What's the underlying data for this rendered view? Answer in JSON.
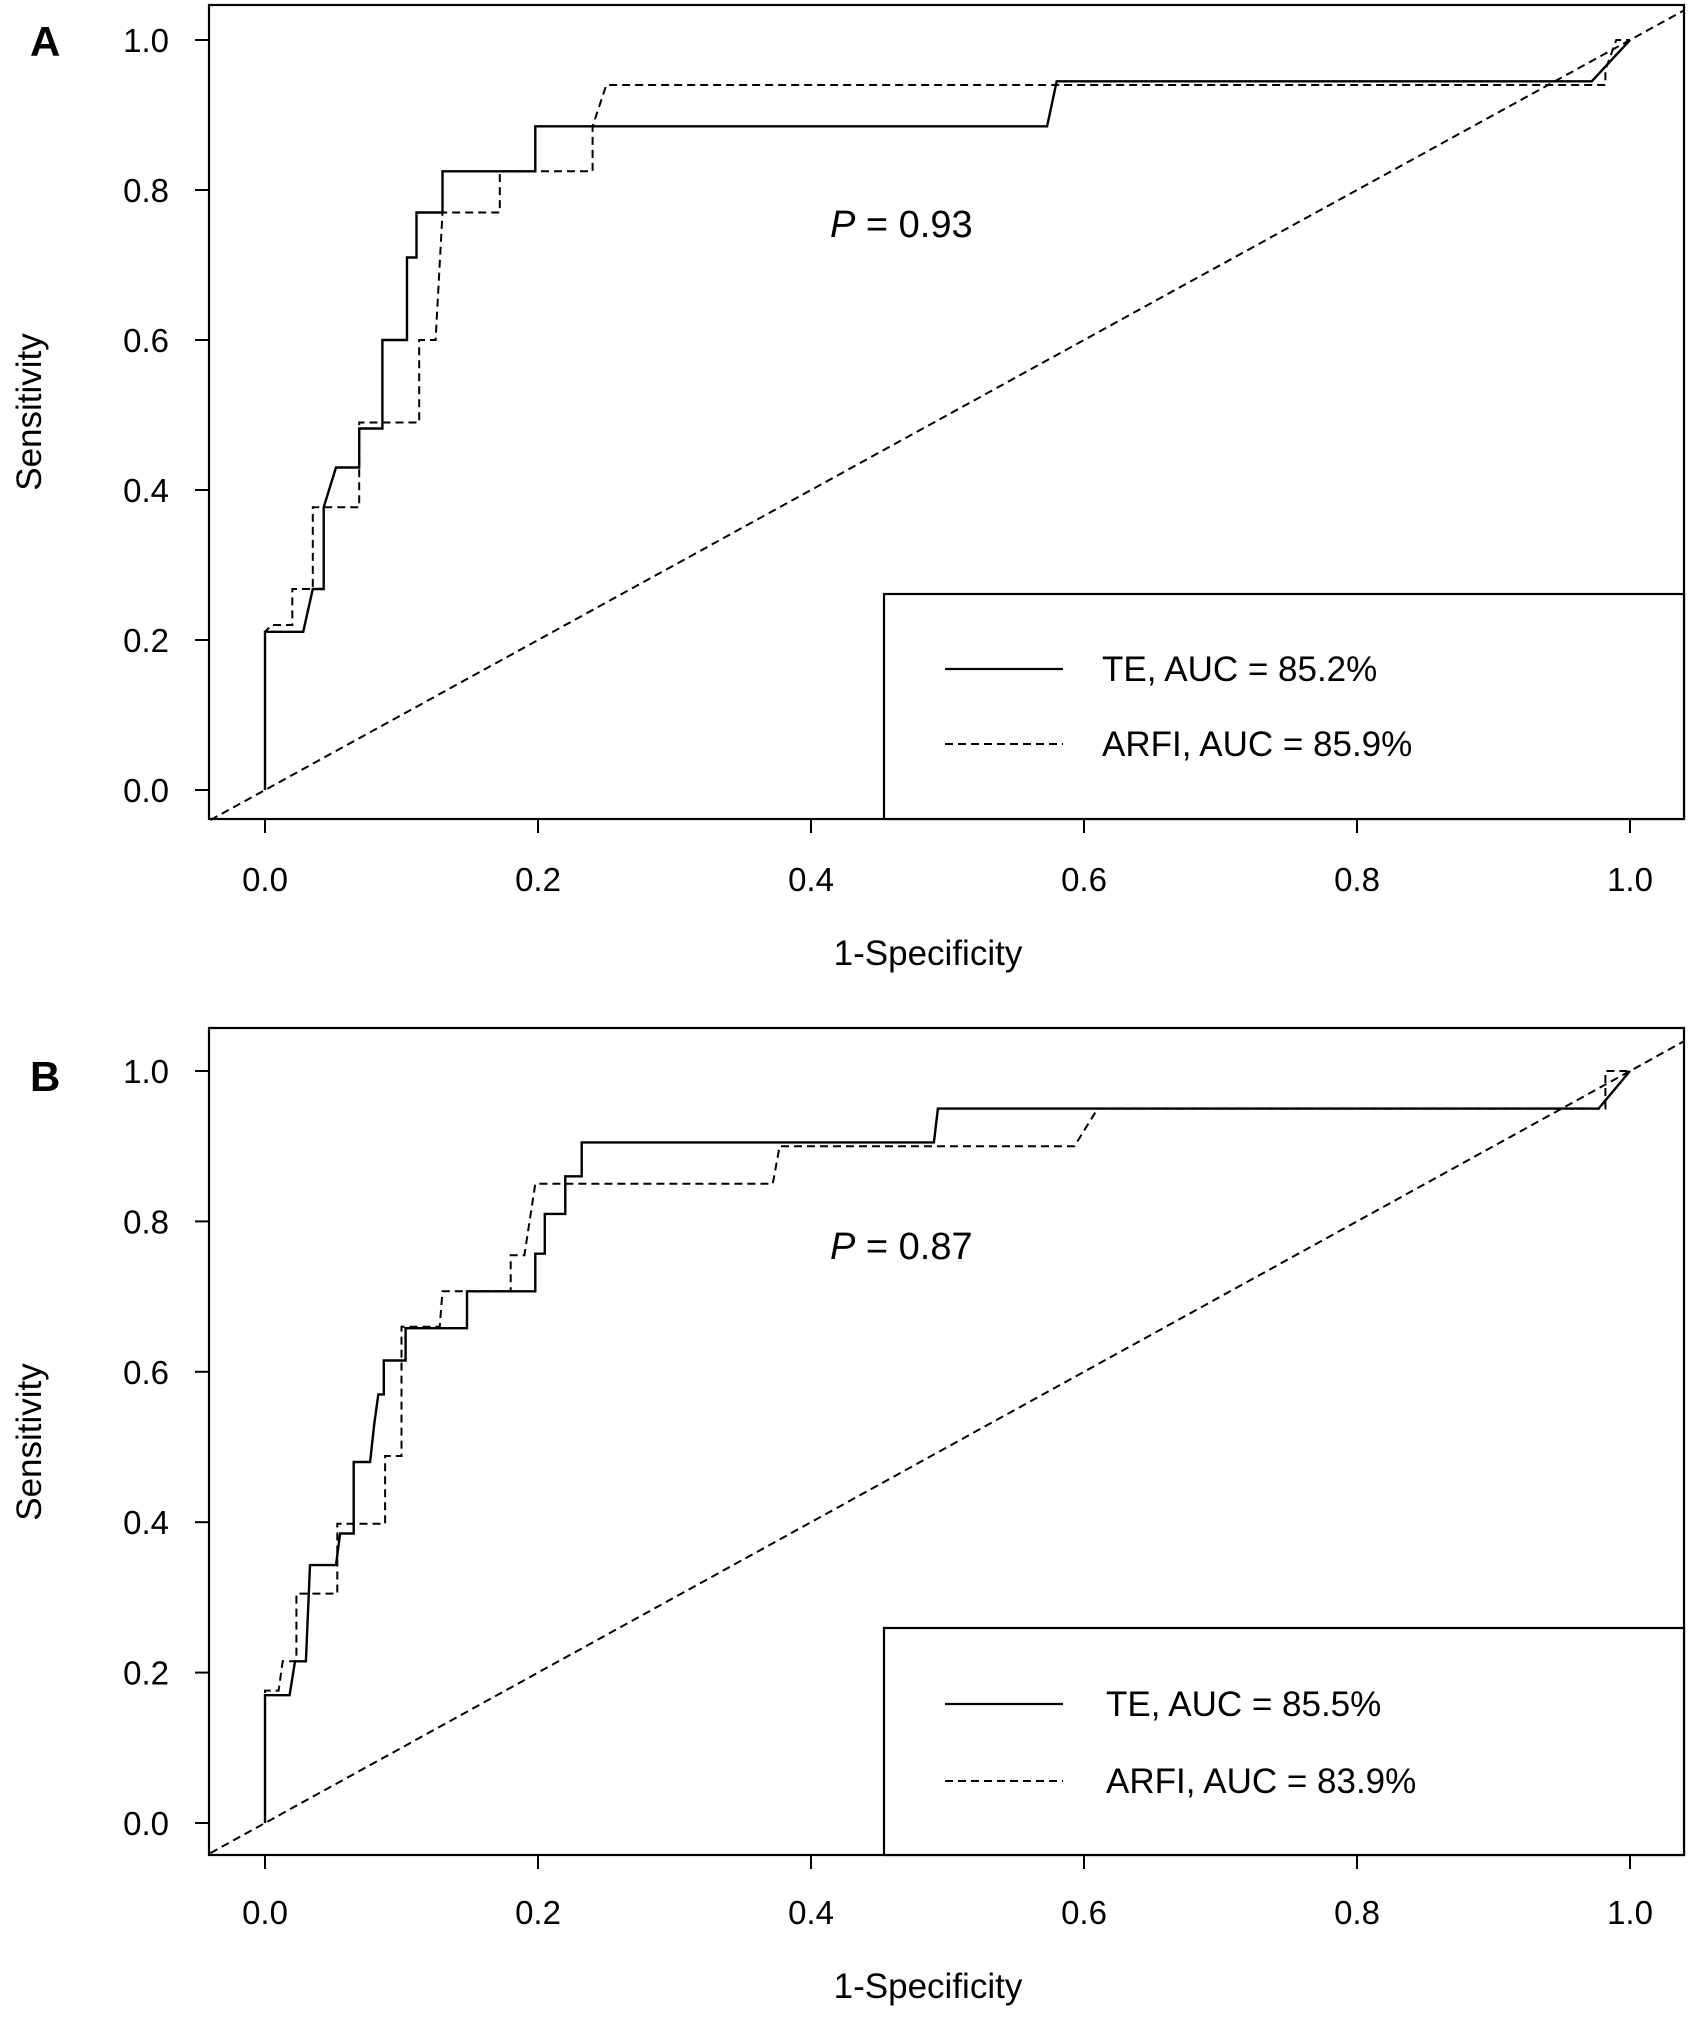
{
  "chart_data": [
    {
      "type": "line",
      "panel_label": "A",
      "xlabel": "1-Specificity",
      "ylabel": "Sensitivity",
      "xlim": [
        -0.04,
        1.04
      ],
      "ylim": [
        -0.04,
        1.04
      ],
      "xticks": [
        "0.0",
        "0.2",
        "0.4",
        "0.6",
        "0.8",
        "1.0"
      ],
      "yticks": [
        "0.0",
        "0.2",
        "0.4",
        "0.6",
        "0.8",
        "1.0"
      ],
      "annotation": {
        "italic": "P",
        "rest": " = 0.93"
      },
      "legend_position": "bottom-right",
      "reference_line": true,
      "series": [
        {
          "name": "TE, AUC = 85.2%",
          "style": "solid",
          "points": [
            [
              0,
              0
            ],
            [
              0,
              0.211
            ],
            [
              0.028,
              0.211
            ],
            [
              0.035,
              0.268
            ],
            [
              0.043,
              0.268
            ],
            [
              0.043,
              0.377
            ],
            [
              0.052,
              0.43
            ],
            [
              0.069,
              0.43
            ],
            [
              0.069,
              0.482
            ],
            [
              0.086,
              0.482
            ],
            [
              0.086,
              0.6
            ],
            [
              0.104,
              0.6
            ],
            [
              0.104,
              0.71
            ],
            [
              0.111,
              0.71
            ],
            [
              0.111,
              0.77
            ],
            [
              0.13,
              0.77
            ],
            [
              0.13,
              0.825
            ],
            [
              0.198,
              0.825
            ],
            [
              0.198,
              0.885
            ],
            [
              0.573,
              0.885
            ],
            [
              0.58,
              0.945
            ],
            [
              0.972,
              0.945
            ],
            [
              1,
              1
            ]
          ]
        },
        {
          "name": "ARFI, AUC = 85.9%",
          "style": "dashed",
          "points": [
            [
              0,
              0
            ],
            [
              0,
              0.211
            ],
            [
              0.005,
              0.22
            ],
            [
              0.02,
              0.22
            ],
            [
              0.02,
              0.268
            ],
            [
              0.035,
              0.268
            ],
            [
              0.035,
              0.377
            ],
            [
              0.069,
              0.377
            ],
            [
              0.069,
              0.49
            ],
            [
              0.113,
              0.49
            ],
            [
              0.113,
              0.6
            ],
            [
              0.125,
              0.6
            ],
            [
              0.13,
              0.77
            ],
            [
              0.172,
              0.77
            ],
            [
              0.172,
              0.825
            ],
            [
              0.24,
              0.825
            ],
            [
              0.24,
              0.885
            ],
            [
              0.25,
              0.94
            ],
            [
              0.982,
              0.94
            ],
            [
              0.982,
              0.96
            ],
            [
              0.99,
              1
            ],
            [
              1,
              1
            ]
          ]
        }
      ]
    },
    {
      "type": "line",
      "panel_label": "B",
      "xlabel": "1-Specificity",
      "ylabel": "Sensitivity",
      "xlim": [
        -0.04,
        1.04
      ],
      "ylim": [
        -0.04,
        1.04
      ],
      "xticks": [
        "0.0",
        "0.2",
        "0.4",
        "0.6",
        "0.8",
        "1.0"
      ],
      "yticks": [
        "0.0",
        "0.2",
        "0.4",
        "0.6",
        "0.8",
        "1.0"
      ],
      "annotation": {
        "italic": "P",
        "rest": " = 0.87"
      },
      "legend_position": "bottom-right",
      "reference_line": true,
      "series": [
        {
          "name": "TE, AUC = 85.5%",
          "style": "solid",
          "points": [
            [
              0,
              0
            ],
            [
              0,
              0.17
            ],
            [
              0.018,
              0.17
            ],
            [
              0.022,
              0.215
            ],
            [
              0.03,
              0.215
            ],
            [
              0.033,
              0.343
            ],
            [
              0.052,
              0.343
            ],
            [
              0.055,
              0.385
            ],
            [
              0.065,
              0.385
            ],
            [
              0.065,
              0.48
            ],
            [
              0.077,
              0.48
            ],
            [
              0.08,
              0.53
            ],
            [
              0.083,
              0.57
            ],
            [
              0.087,
              0.57
            ],
            [
              0.087,
              0.615
            ],
            [
              0.103,
              0.615
            ],
            [
              0.103,
              0.658
            ],
            [
              0.148,
              0.658
            ],
            [
              0.148,
              0.707
            ],
            [
              0.198,
              0.707
            ],
            [
              0.198,
              0.757
            ],
            [
              0.205,
              0.757
            ],
            [
              0.205,
              0.81
            ],
            [
              0.22,
              0.81
            ],
            [
              0.22,
              0.86
            ],
            [
              0.232,
              0.86
            ],
            [
              0.232,
              0.905
            ],
            [
              0.49,
              0.905
            ],
            [
              0.493,
              0.95
            ],
            [
              0.977,
              0.95
            ],
            [
              1,
              1
            ]
          ]
        },
        {
          "name": "ARFI, AUC = 83.9%",
          "style": "dashed",
          "points": [
            [
              0,
              0
            ],
            [
              0,
              0.176
            ],
            [
              0.01,
              0.176
            ],
            [
              0.013,
              0.215
            ],
            [
              0.023,
              0.215
            ],
            [
              0.023,
              0.305
            ],
            [
              0.053,
              0.305
            ],
            [
              0.053,
              0.398
            ],
            [
              0.088,
              0.398
            ],
            [
              0.088,
              0.488
            ],
            [
              0.1,
              0.488
            ],
            [
              0.1,
              0.66
            ],
            [
              0.128,
              0.66
            ],
            [
              0.13,
              0.707
            ],
            [
              0.18,
              0.707
            ],
            [
              0.18,
              0.755
            ],
            [
              0.19,
              0.755
            ],
            [
              0.198,
              0.85
            ],
            [
              0.372,
              0.85
            ],
            [
              0.377,
              0.9
            ],
            [
              0.593,
              0.9
            ],
            [
              0.61,
              0.95
            ],
            [
              0.982,
              0.95
            ],
            [
              0.982,
              1
            ],
            [
              1,
              1
            ]
          ]
        }
      ]
    }
  ]
}
